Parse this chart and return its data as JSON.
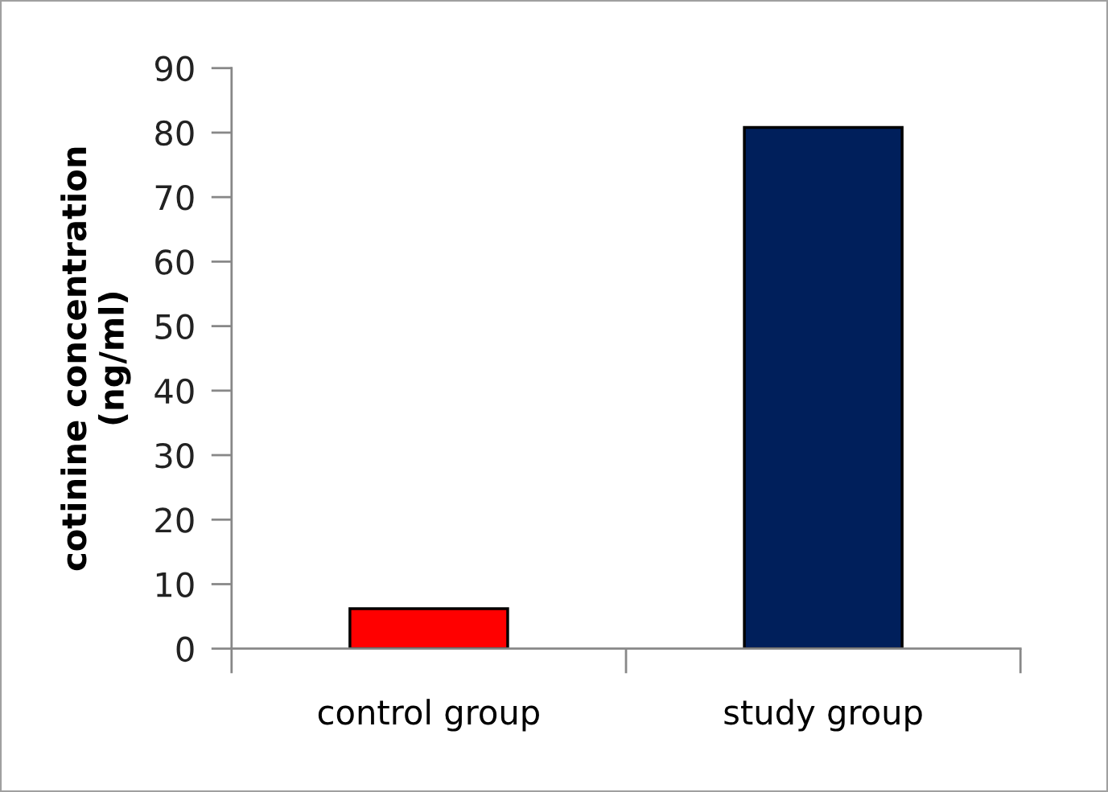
{
  "chart_data": {
    "type": "bar",
    "ylabel": "cotinine concentration\n(ng/ml)",
    "categories": [
      "control group",
      "study group"
    ],
    "values": [
      6.2,
      80.8
    ],
    "colors": [
      "#ff0000",
      "#001f5b"
    ],
    "ylim": [
      0,
      90
    ],
    "yticks": [
      0,
      10,
      20,
      30,
      40,
      50,
      60,
      70,
      80,
      90
    ],
    "grid": false,
    "legend": false
  }
}
